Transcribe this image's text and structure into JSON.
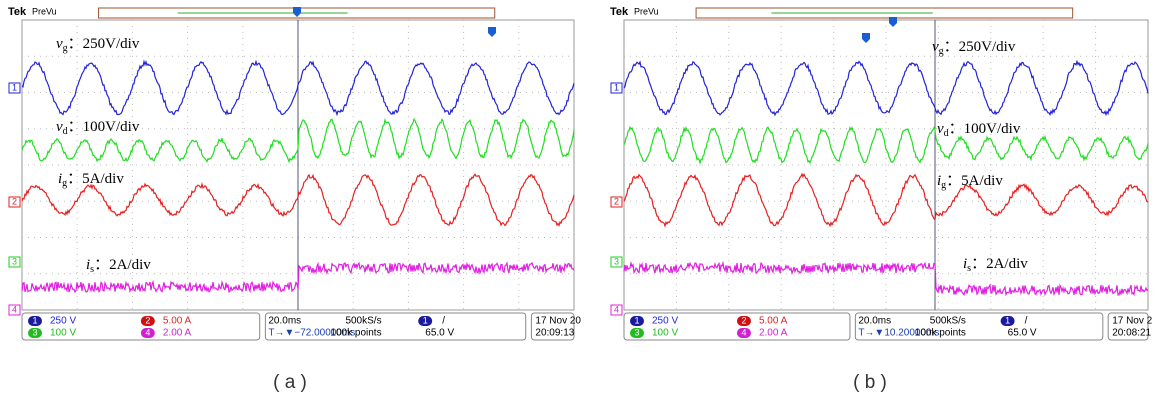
{
  "panels": [
    {
      "brand": "Tek",
      "mode": "PreVu",
      "labels": [
        {
          "symbol": "v",
          "sub": "g",
          "text": "：250V/div"
        },
        {
          "symbol": "v",
          "sub": "d",
          "text": "：100V/div"
        },
        {
          "symbol": "i",
          "sub": "g",
          "text": "：5A/div"
        },
        {
          "symbol": "i",
          "sub": "s",
          "text": "：2A/div"
        }
      ],
      "channels": [
        "1",
        "2",
        "3",
        "4"
      ],
      "status": {
        "ch1": "250 V",
        "ch2": "5.00 A",
        "ch3": "100 V",
        "ch4": "2.00 A",
        "timebase": "20.0ms",
        "trigger_pos": "T→▼−72.00000ms",
        "sample_rate": "500kS/s",
        "record": "100k points",
        "trig_ch": "1",
        "trig_slope": "/",
        "trig_level": "65.0 V",
        "date": "17 Nov 20",
        "time": "20:09:13"
      },
      "caption": "( a )"
    },
    {
      "brand": "Tek",
      "mode": "PreVu",
      "labels": [
        {
          "symbol": "v",
          "sub": "g",
          "text": "：250V/div"
        },
        {
          "symbol": "v",
          "sub": "d",
          "text": "：100V/div"
        },
        {
          "symbol": "i",
          "sub": "g",
          "text": "：5A/div"
        },
        {
          "symbol": "i",
          "sub": "s",
          "text": "：2A/div"
        }
      ],
      "channels": [
        "1",
        "2",
        "3",
        "4"
      ],
      "status": {
        "ch1": "250 V",
        "ch2": "5.00 A",
        "ch3": "100 V",
        "ch4": "2.00 A",
        "timebase": "20.0ms",
        "trigger_pos": "T→▼10.20000ms",
        "sample_rate": "500kS/s",
        "record": "100k points",
        "trig_ch": "1",
        "trig_slope": "/",
        "trig_level": "65.0 V",
        "date": "17 Nov 2",
        "time": "20:08:21"
      },
      "caption": "( b )"
    }
  ]
}
